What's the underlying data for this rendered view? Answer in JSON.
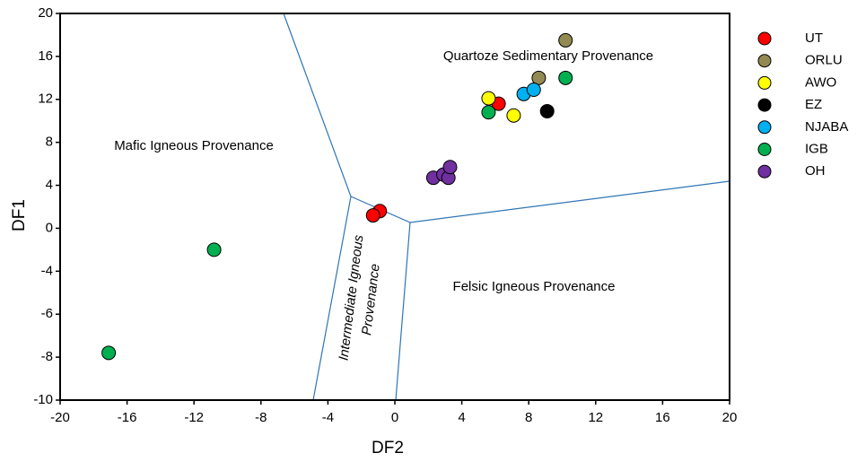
{
  "chart_data": {
    "type": "scatter",
    "x_label": "DF2",
    "y_label": "DF1",
    "xlim": [
      -20,
      20
    ],
    "xticks": [
      -20,
      -16,
      -12,
      -8,
      -4,
      0,
      4,
      8,
      12,
      16,
      20
    ],
    "ylim": [
      -10,
      20
    ],
    "yticks": [
      20,
      16,
      12,
      8,
      4,
      0,
      -4,
      -6,
      -8,
      -10
    ],
    "annotations": [
      "Quartoze Sedimentary Provenance",
      "Mafic Igneous Provenance",
      "Felsic Igneous Provenance",
      "Intermediate Igneous",
      "Provenance"
    ],
    "series": [
      {
        "name": "UT",
        "color": "#ff0000",
        "x": [
          -0.9,
          -1.3,
          6.2
        ],
        "values": [
          1.6,
          1.2,
          11.6
        ]
      },
      {
        "name": "ORLU",
        "color": "#938953",
        "x": [
          10.2,
          8.6
        ],
        "values": [
          17.5,
          14
        ]
      },
      {
        "name": "AWO",
        "color": "#ffff00",
        "x": [
          5.6,
          7.1
        ],
        "values": [
          12.1,
          10.5
        ]
      },
      {
        "name": "EZ",
        "color": "#000000",
        "x": [
          9.1
        ],
        "values": [
          10.9
        ]
      },
      {
        "name": "NJABA",
        "color": "#00b0f0",
        "x": [
          7.7,
          8.3
        ],
        "values": [
          12.5,
          12.9
        ]
      },
      {
        "name": "IGB",
        "color": "#00b050",
        "x": [
          10.2,
          5.6,
          -10.8,
          -17.1
        ],
        "values": [
          14,
          10.8,
          -2,
          -7.8
        ]
      },
      {
        "name": "OH",
        "color": "#7030a0",
        "x": [
          2.3,
          2.9,
          3.2,
          3.3
        ],
        "values": [
          4.7,
          5,
          4.7,
          5.7
        ]
      }
    ]
  }
}
